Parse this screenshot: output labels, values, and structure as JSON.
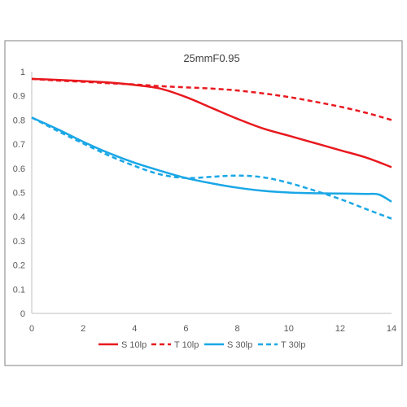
{
  "chart_data": {
    "type": "line",
    "title": "25mmF0.95",
    "xlabel": "",
    "ylabel": "",
    "xlim": [
      0,
      14
    ],
    "ylim": [
      0,
      1
    ],
    "x_ticks": [
      "0",
      "2",
      "4",
      "6",
      "8",
      "10",
      "12",
      "14"
    ],
    "y_ticks": [
      "0",
      "0.1",
      "0.2",
      "0.3",
      "0.4",
      "0.5",
      "0.6",
      "0.7",
      "0.8",
      "0.9",
      "1"
    ],
    "grid": false,
    "legend_position": "bottom",
    "series": [
      {
        "name": "S 10lp",
        "color": "#e8191f",
        "dash": "solid",
        "x": [
          0,
          1,
          2,
          3,
          4,
          5,
          6,
          7,
          8,
          9,
          10,
          11,
          12,
          13,
          14
        ],
        "y": [
          0.97,
          0.966,
          0.961,
          0.955,
          0.945,
          0.93,
          0.895,
          0.85,
          0.805,
          0.765,
          0.735,
          0.705,
          0.675,
          0.645,
          0.605
        ]
      },
      {
        "name": "T 10lp",
        "color": "#e8191f",
        "dash": "dashed",
        "x": [
          0,
          1,
          2,
          3,
          4,
          5,
          6,
          7,
          8,
          9,
          10,
          11,
          12,
          13,
          14
        ],
        "y": [
          0.97,
          0.963,
          0.958,
          0.952,
          0.947,
          0.94,
          0.935,
          0.93,
          0.922,
          0.91,
          0.895,
          0.876,
          0.855,
          0.83,
          0.8
        ]
      },
      {
        "name": "S 30lp",
        "color": "#1aa7e6",
        "dash": "solid",
        "x": [
          0,
          1,
          2,
          3,
          4,
          5,
          6,
          7,
          8,
          9,
          10,
          11,
          12,
          13,
          13.5,
          14
        ],
        "y": [
          0.81,
          0.762,
          0.71,
          0.663,
          0.623,
          0.59,
          0.56,
          0.538,
          0.52,
          0.507,
          0.5,
          0.497,
          0.496,
          0.494,
          0.492,
          0.462
        ]
      },
      {
        "name": "T 30lp",
        "color": "#1aa7e6",
        "dash": "dashed",
        "x": [
          0,
          1,
          2,
          3,
          4,
          5,
          6,
          7,
          8,
          9,
          10,
          11,
          12,
          13,
          14
        ],
        "y": [
          0.81,
          0.755,
          0.703,
          0.653,
          0.61,
          0.575,
          0.56,
          0.565,
          0.57,
          0.563,
          0.54,
          0.508,
          0.473,
          0.432,
          0.392
        ]
      }
    ]
  }
}
